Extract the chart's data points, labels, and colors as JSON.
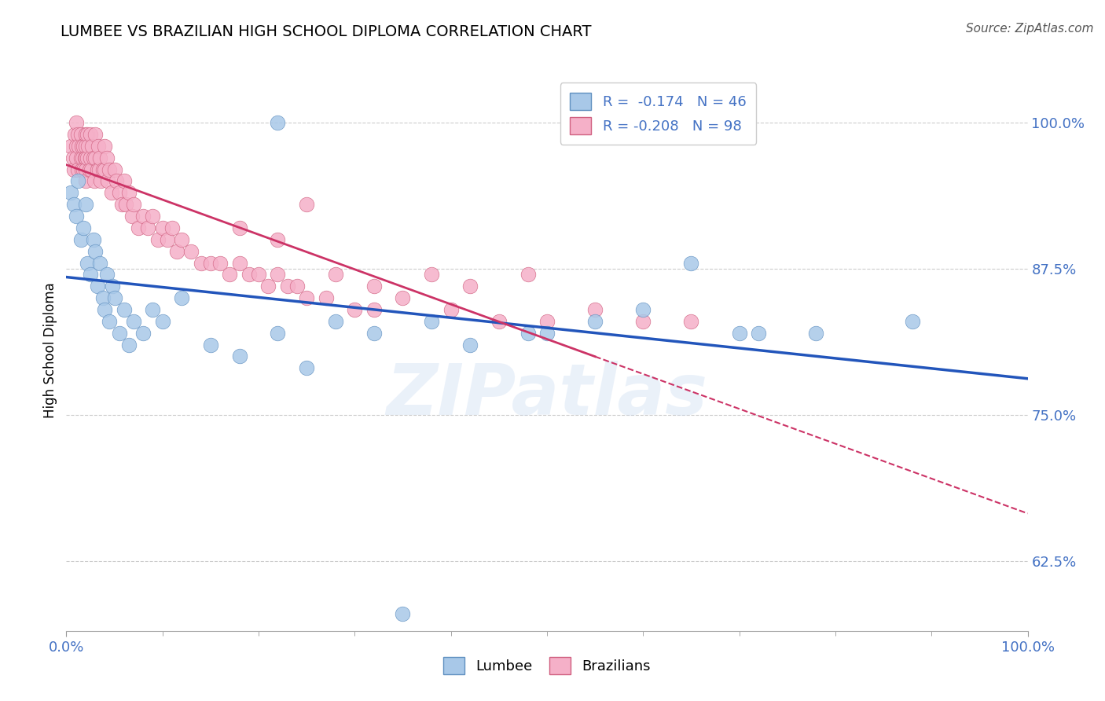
{
  "title": "LUMBEE VS BRAZILIAN HIGH SCHOOL DIPLOMA CORRELATION CHART",
  "source": "Source: ZipAtlas.com",
  "ylabel": "High School Diploma",
  "xlim": [
    0.0,
    1.0
  ],
  "ylim": [
    0.565,
    1.045
  ],
  "yticks": [
    0.625,
    0.75,
    0.875,
    1.0
  ],
  "ytick_labels": [
    "62.5%",
    "75.0%",
    "87.5%",
    "100.0%"
  ],
  "xtick_labels": [
    "0.0%",
    "100.0%"
  ],
  "lumbee_color": "#a8c8e8",
  "brazil_color": "#f5b0c8",
  "lumbee_edge": "#6090c0",
  "brazil_edge": "#d06080",
  "trendline_lumbee_color": "#2255bb",
  "trendline_brazil_color": "#cc3366",
  "background_color": "#ffffff",
  "grid_color": "#cccccc",
  "watermark": "ZIPatlas",
  "lumbee_x": [
    0.005,
    0.008,
    0.01,
    0.012,
    0.015,
    0.018,
    0.02,
    0.022,
    0.025,
    0.028,
    0.03,
    0.032,
    0.035,
    0.038,
    0.04,
    0.042,
    0.045,
    0.048,
    0.05,
    0.055,
    0.06,
    0.065,
    0.07,
    0.08,
    0.09,
    0.1,
    0.12,
    0.15,
    0.18,
    0.22,
    0.25,
    0.28,
    0.32,
    0.38,
    0.42,
    0.48,
    0.5,
    0.55,
    0.6,
    0.65,
    0.7,
    0.72,
    0.78,
    0.88,
    0.22,
    0.35
  ],
  "lumbee_y": [
    0.94,
    0.93,
    0.92,
    0.95,
    0.9,
    0.91,
    0.93,
    0.88,
    0.87,
    0.9,
    0.89,
    0.86,
    0.88,
    0.85,
    0.84,
    0.87,
    0.83,
    0.86,
    0.85,
    0.82,
    0.84,
    0.81,
    0.83,
    0.82,
    0.84,
    0.83,
    0.85,
    0.81,
    0.8,
    0.82,
    0.79,
    0.83,
    0.82,
    0.83,
    0.81,
    0.82,
    0.82,
    0.83,
    0.84,
    0.88,
    0.82,
    0.82,
    0.82,
    0.83,
    1.0,
    0.58
  ],
  "brazil_x": [
    0.005,
    0.007,
    0.008,
    0.009,
    0.01,
    0.01,
    0.01,
    0.012,
    0.012,
    0.013,
    0.015,
    0.015,
    0.016,
    0.016,
    0.017,
    0.018,
    0.018,
    0.019,
    0.02,
    0.02,
    0.02,
    0.02,
    0.02,
    0.022,
    0.022,
    0.023,
    0.024,
    0.025,
    0.025,
    0.026,
    0.027,
    0.028,
    0.029,
    0.03,
    0.03,
    0.032,
    0.033,
    0.034,
    0.035,
    0.036,
    0.038,
    0.04,
    0.04,
    0.042,
    0.043,
    0.045,
    0.047,
    0.05,
    0.052,
    0.055,
    0.058,
    0.06,
    0.062,
    0.065,
    0.068,
    0.07,
    0.075,
    0.08,
    0.085,
    0.09,
    0.095,
    0.1,
    0.105,
    0.11,
    0.115,
    0.12,
    0.13,
    0.14,
    0.15,
    0.16,
    0.17,
    0.18,
    0.19,
    0.2,
    0.21,
    0.22,
    0.23,
    0.24,
    0.25,
    0.27,
    0.3,
    0.32,
    0.35,
    0.4,
    0.45,
    0.5,
    0.55,
    0.6,
    0.65,
    0.25,
    0.18,
    0.22,
    0.28,
    0.32,
    0.38,
    0.42,
    0.48
  ],
  "brazil_y": [
    0.98,
    0.97,
    0.96,
    0.99,
    1.0,
    0.98,
    0.97,
    0.99,
    0.96,
    0.98,
    0.99,
    0.97,
    0.98,
    0.96,
    0.97,
    0.98,
    0.96,
    0.97,
    0.99,
    0.98,
    0.97,
    0.96,
    0.95,
    0.99,
    0.97,
    0.98,
    0.96,
    0.99,
    0.97,
    0.96,
    0.98,
    0.97,
    0.95,
    0.99,
    0.97,
    0.96,
    0.98,
    0.96,
    0.97,
    0.95,
    0.96,
    0.98,
    0.96,
    0.97,
    0.95,
    0.96,
    0.94,
    0.96,
    0.95,
    0.94,
    0.93,
    0.95,
    0.93,
    0.94,
    0.92,
    0.93,
    0.91,
    0.92,
    0.91,
    0.92,
    0.9,
    0.91,
    0.9,
    0.91,
    0.89,
    0.9,
    0.89,
    0.88,
    0.88,
    0.88,
    0.87,
    0.88,
    0.87,
    0.87,
    0.86,
    0.87,
    0.86,
    0.86,
    0.85,
    0.85,
    0.84,
    0.84,
    0.85,
    0.84,
    0.83,
    0.83,
    0.84,
    0.83,
    0.83,
    0.93,
    0.91,
    0.9,
    0.87,
    0.86,
    0.87,
    0.86,
    0.87
  ]
}
